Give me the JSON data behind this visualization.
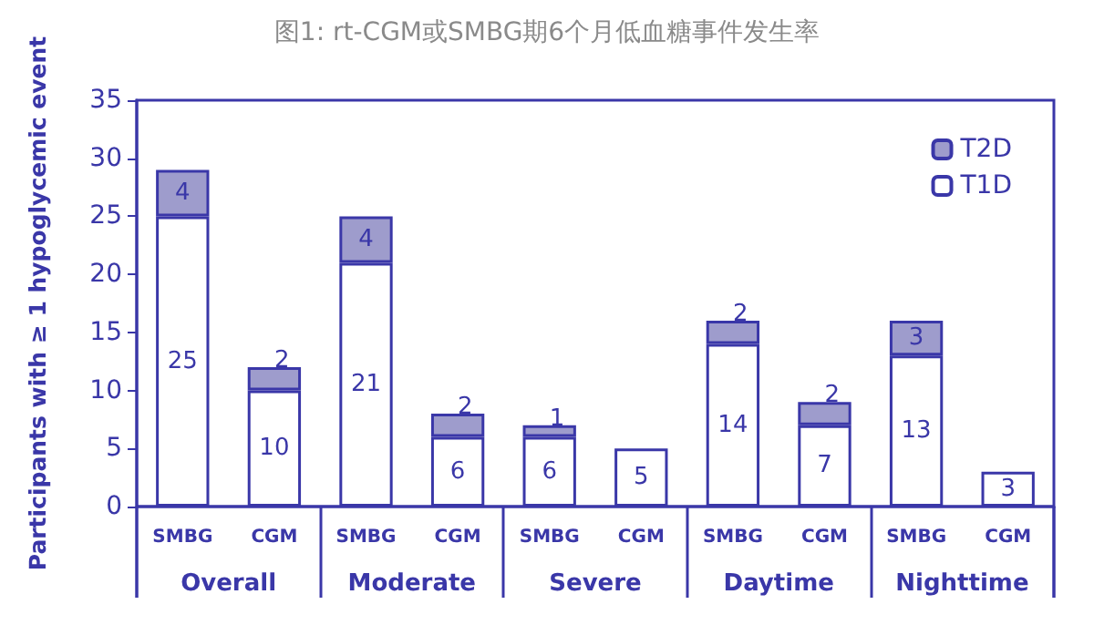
{
  "chart_data": {
    "type": "bar",
    "title": "图1: rt-CGM或SMBG期6个月低血糖事件发生率",
    "ylabel": "Participants with ≥ 1 hypoglycemic event",
    "categories": [
      "SMBG",
      "CGM",
      "SMBG",
      "CGM",
      "SMBG",
      "CGM",
      "SMBG",
      "CGM",
      "SMBG",
      "CGM"
    ],
    "annotations": [
      "Overall",
      "Moderate",
      "Severe",
      "Daytime",
      "Nighttime"
    ],
    "stacked": true,
    "series": [
      {
        "name": "T1D",
        "color": "#ffffff",
        "values": [
          25,
          10,
          21,
          6,
          6,
          5,
          14,
          7,
          13,
          3
        ]
      },
      {
        "name": "T2D",
        "color": "#9e9ccc",
        "values": [
          4,
          2,
          4,
          2,
          1,
          null,
          2,
          2,
          3,
          null
        ]
      }
    ],
    "ylim": [
      0,
      35
    ],
    "yticks": [
      0,
      5,
      10,
      15,
      20,
      25,
      30,
      35
    ],
    "grid": false,
    "legend": "top right",
    "data_labels": true
  }
}
